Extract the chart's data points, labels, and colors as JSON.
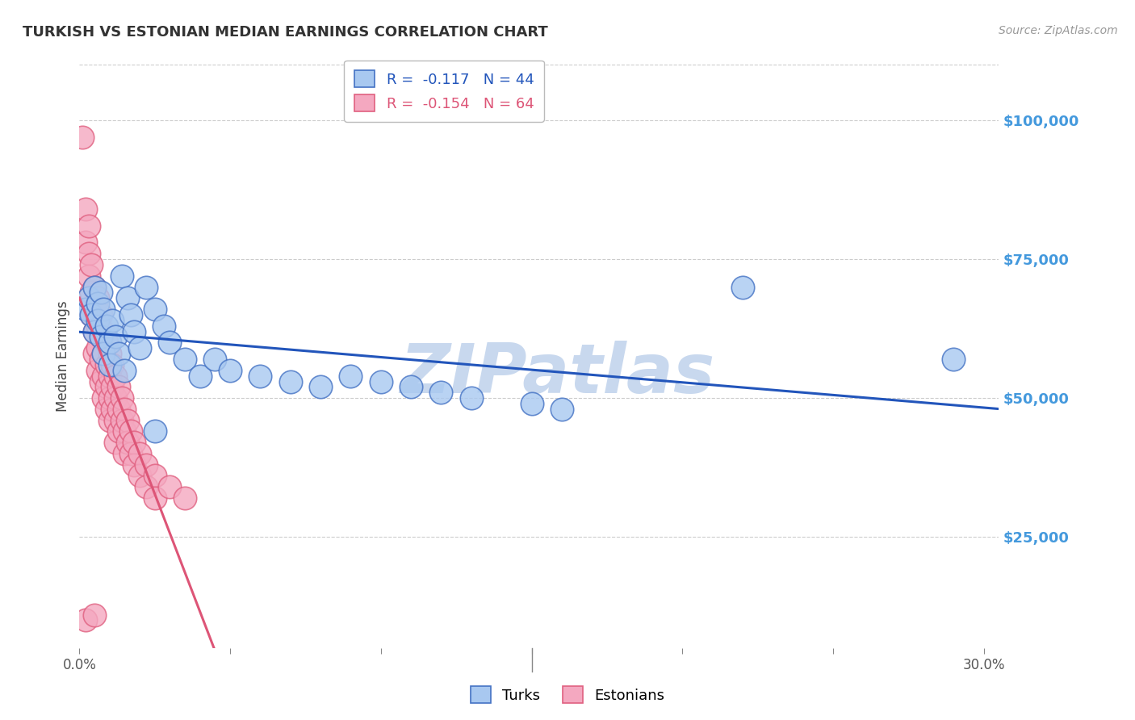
{
  "title": "TURKISH VS ESTONIAN MEDIAN EARNINGS CORRELATION CHART",
  "source": "Source: ZipAtlas.com",
  "ylabel": "Median Earnings",
  "ytick_labels": [
    "$25,000",
    "$50,000",
    "$75,000",
    "$100,000"
  ],
  "ytick_values": [
    25000,
    50000,
    75000,
    100000
  ],
  "ylim": [
    5000,
    110000
  ],
  "xlim": [
    0.0,
    0.305
  ],
  "turks_R": "-0.117",
  "turks_N": "44",
  "estonians_R": "-0.154",
  "estonians_N": "64",
  "turks_color": "#A8C8F0",
  "estonians_color": "#F4A8C0",
  "turks_edge_color": "#4472C4",
  "estonians_edge_color": "#E06080",
  "turks_line_color": "#2255BB",
  "estonians_line_color": "#DD5577",
  "watermark_color": "#C8D8EE",
  "ytick_color": "#4499DD",
  "grid_color": "#CCCCCC",
  "turks_scatter": [
    [
      0.002,
      66000
    ],
    [
      0.003,
      68000
    ],
    [
      0.004,
      65000
    ],
    [
      0.005,
      70000
    ],
    [
      0.005,
      62000
    ],
    [
      0.006,
      67000
    ],
    [
      0.006,
      64000
    ],
    [
      0.007,
      69000
    ],
    [
      0.007,
      61000
    ],
    [
      0.008,
      66000
    ],
    [
      0.008,
      58000
    ],
    [
      0.009,
      63000
    ],
    [
      0.01,
      60000
    ],
    [
      0.01,
      56000
    ],
    [
      0.011,
      64000
    ],
    [
      0.012,
      61000
    ],
    [
      0.013,
      58000
    ],
    [
      0.014,
      72000
    ],
    [
      0.015,
      55000
    ],
    [
      0.016,
      68000
    ],
    [
      0.017,
      65000
    ],
    [
      0.018,
      62000
    ],
    [
      0.02,
      59000
    ],
    [
      0.022,
      70000
    ],
    [
      0.025,
      66000
    ],
    [
      0.028,
      63000
    ],
    [
      0.03,
      60000
    ],
    [
      0.035,
      57000
    ],
    [
      0.04,
      54000
    ],
    [
      0.045,
      57000
    ],
    [
      0.05,
      55000
    ],
    [
      0.06,
      54000
    ],
    [
      0.07,
      53000
    ],
    [
      0.08,
      52000
    ],
    [
      0.09,
      54000
    ],
    [
      0.1,
      53000
    ],
    [
      0.11,
      52000
    ],
    [
      0.12,
      51000
    ],
    [
      0.13,
      50000
    ],
    [
      0.15,
      49000
    ],
    [
      0.16,
      48000
    ],
    [
      0.22,
      70000
    ],
    [
      0.29,
      57000
    ],
    [
      0.025,
      44000
    ]
  ],
  "estonians_scatter": [
    [
      0.001,
      97000
    ],
    [
      0.002,
      84000
    ],
    [
      0.002,
      78000
    ],
    [
      0.003,
      81000
    ],
    [
      0.003,
      76000
    ],
    [
      0.003,
      72000
    ],
    [
      0.004,
      74000
    ],
    [
      0.004,
      69000
    ],
    [
      0.004,
      65000
    ],
    [
      0.005,
      70000
    ],
    [
      0.005,
      66000
    ],
    [
      0.005,
      62000
    ],
    [
      0.005,
      58000
    ],
    [
      0.006,
      68000
    ],
    [
      0.006,
      63000
    ],
    [
      0.006,
      59000
    ],
    [
      0.006,
      55000
    ],
    [
      0.007,
      65000
    ],
    [
      0.007,
      61000
    ],
    [
      0.007,
      57000
    ],
    [
      0.007,
      53000
    ],
    [
      0.008,
      62000
    ],
    [
      0.008,
      58000
    ],
    [
      0.008,
      54000
    ],
    [
      0.008,
      50000
    ],
    [
      0.009,
      60000
    ],
    [
      0.009,
      56000
    ],
    [
      0.009,
      52000
    ],
    [
      0.009,
      48000
    ],
    [
      0.01,
      58000
    ],
    [
      0.01,
      54000
    ],
    [
      0.01,
      50000
    ],
    [
      0.01,
      46000
    ],
    [
      0.011,
      56000
    ],
    [
      0.011,
      52000
    ],
    [
      0.011,
      48000
    ],
    [
      0.012,
      54000
    ],
    [
      0.012,
      50000
    ],
    [
      0.012,
      46000
    ],
    [
      0.012,
      42000
    ],
    [
      0.013,
      52000
    ],
    [
      0.013,
      48000
    ],
    [
      0.013,
      44000
    ],
    [
      0.014,
      50000
    ],
    [
      0.014,
      46000
    ],
    [
      0.015,
      48000
    ],
    [
      0.015,
      44000
    ],
    [
      0.015,
      40000
    ],
    [
      0.016,
      46000
    ],
    [
      0.016,
      42000
    ],
    [
      0.017,
      44000
    ],
    [
      0.017,
      40000
    ],
    [
      0.018,
      42000
    ],
    [
      0.018,
      38000
    ],
    [
      0.02,
      40000
    ],
    [
      0.02,
      36000
    ],
    [
      0.022,
      38000
    ],
    [
      0.022,
      34000
    ],
    [
      0.025,
      36000
    ],
    [
      0.025,
      32000
    ],
    [
      0.03,
      34000
    ],
    [
      0.035,
      32000
    ],
    [
      0.002,
      10000
    ],
    [
      0.005,
      11000
    ]
  ]
}
